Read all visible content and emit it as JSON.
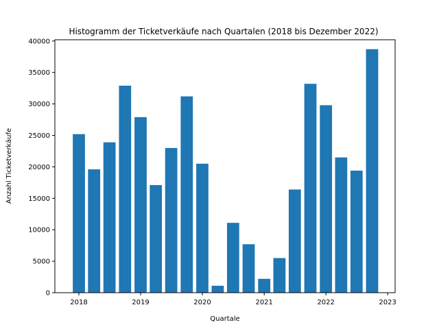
{
  "chart_data": {
    "type": "bar",
    "title": "Histogramm der Ticketverkäufe nach Quartalen (2018 bis Dezember 2022)",
    "xlabel": "Quartale",
    "ylabel": "Anzahl Ticketverkäufe",
    "x_ticks": [
      "2018",
      "2019",
      "2020",
      "2021",
      "2022",
      "2023"
    ],
    "y_ticks": [
      "0",
      "5000",
      "10000",
      "15000",
      "20000",
      "25000",
      "30000",
      "35000",
      "40000"
    ],
    "xlim": [
      "2017-08-12",
      "2023-02-14"
    ],
    "ylim": [
      0,
      40200
    ],
    "grid": false,
    "color": "#1f77b4",
    "series": [
      {
        "x": [
          "2018-01-01",
          "2018-04-01",
          "2018-07-01",
          "2018-10-01",
          "2019-01-01",
          "2019-04-01",
          "2019-07-01",
          "2019-10-01",
          "2020-01-01",
          "2020-04-01",
          "2020-07-01",
          "2020-10-01",
          "2021-01-01",
          "2021-04-01",
          "2021-07-01",
          "2021-10-01",
          "2022-01-01",
          "2022-04-01",
          "2022-07-01",
          "2022-10-01"
        ],
        "values": [
          25200,
          19600,
          23900,
          32900,
          27900,
          17100,
          23000,
          31200,
          20500,
          1100,
          11100,
          7700,
          2200,
          5500,
          16400,
          33200,
          29800,
          21500,
          19400,
          38700
        ]
      }
    ]
  }
}
